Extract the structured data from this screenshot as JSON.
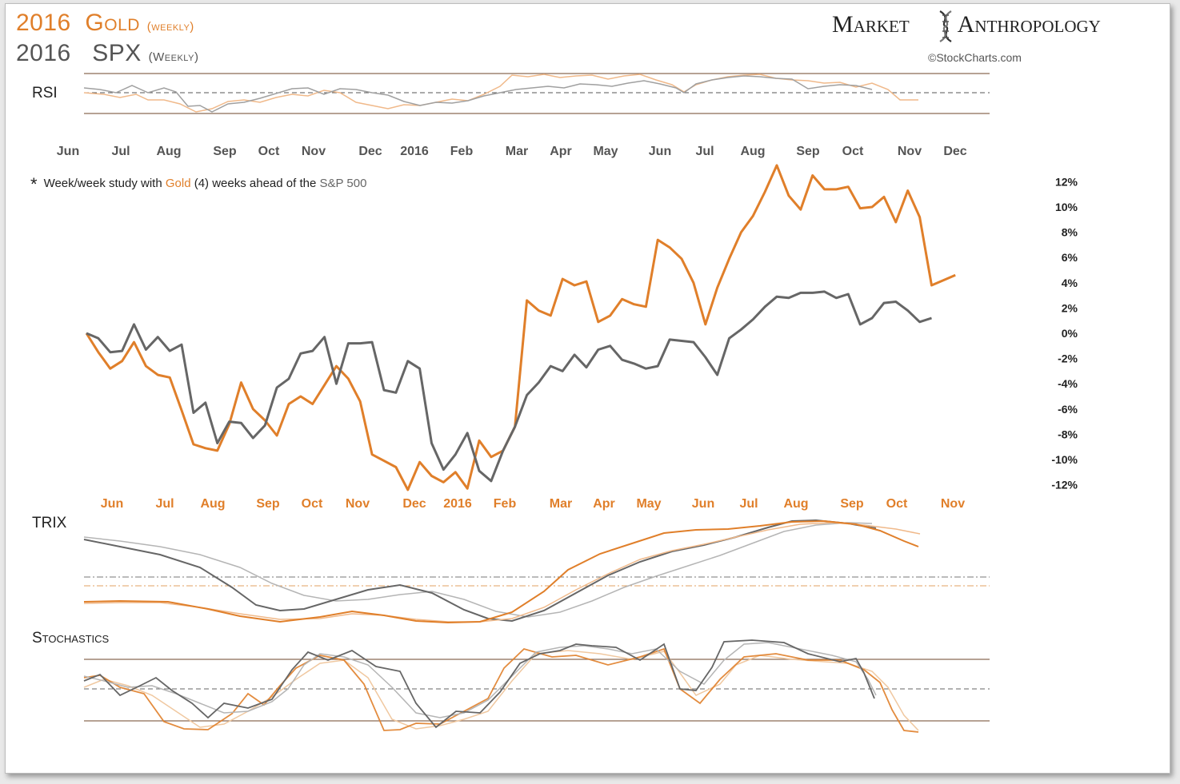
{
  "header": {
    "gold_year": "2016",
    "gold_name": "Gold",
    "gold_sub": "(weekly)",
    "spx_year": "2016",
    "spx_name": "SPX",
    "spx_sub": "(Weekly)",
    "brand_left": "Market",
    "brand_right": "Anthropology",
    "brand_icon": "dna-icon",
    "credit": "©StockCharts.com"
  },
  "note": {
    "star": "*",
    "before": "Week/week study with ",
    "gold": "Gold",
    "middle": " (4) weeks ahead of the ",
    "spx": "S&P 500"
  },
  "colors": {
    "gold": "#e07f2a",
    "spx": "#666666",
    "gold_light": "#f0b98a",
    "spx_light": "#b5b5b5",
    "band": "#8a6a55"
  },
  "labels": {
    "rsi": "RSI",
    "trix": "TRIX",
    "stochastics": "Stochastics"
  },
  "chart_data": {
    "type": "line",
    "gray_months": [
      "Jun",
      "Jul",
      "Aug",
      "Sep",
      "Oct",
      "Nov",
      "Dec",
      "2016",
      "Feb",
      "Mar",
      "Apr",
      "May",
      "Jun",
      "Jul",
      "Aug",
      "Sep",
      "Oct",
      "Nov",
      "Dec"
    ],
    "gold_months": [
      "Jun",
      "Jul",
      "Aug",
      "Sep",
      "Oct",
      "Nov",
      "Dec",
      "2016",
      "Feb",
      "Mar",
      "Apr",
      "May",
      "Jun",
      "Jul",
      "Aug",
      "Sep",
      "Oct",
      "Nov"
    ],
    "y_ticks": [
      "12%",
      "10%",
      "8%",
      "6%",
      "4%",
      "2%",
      "0%",
      "-2%",
      "-4%",
      "-6%",
      "-8%",
      "-10%",
      "-12%"
    ],
    "y_tick_values": [
      12,
      10,
      8,
      6,
      4,
      2,
      0,
      -2,
      -4,
      -6,
      -8,
      -10,
      -12
    ],
    "ylim": [
      -12,
      12
    ],
    "series": [
      {
        "name": "Gold",
        "color": "#e07f2a",
        "values": [
          0,
          -1.5,
          -2.8,
          -2.2,
          -0.7,
          -2.6,
          -3.3,
          -3.5,
          -6.1,
          -8.8,
          -9.1,
          -9.3,
          -7.2,
          -3.9,
          -6.0,
          -6.9,
          -8.1,
          -5.6,
          -5.0,
          -5.6,
          -4.1,
          -2.6,
          -3.6,
          -5.4,
          -9.6,
          -10.1,
          -10.6,
          -12.4,
          -10.2,
          -11.3,
          -11.8,
          -11.0,
          -12.3,
          -8.5,
          -9.8,
          -9.3,
          -7.4,
          2.6,
          1.8,
          1.4,
          4.3,
          3.8,
          4.1,
          0.9,
          1.4,
          2.7,
          2.3,
          2.1,
          7.4,
          6.8,
          5.9,
          4.0,
          0.7,
          3.6,
          5.9,
          8.0,
          9.3,
          11.2,
          13.3,
          10.9,
          9.8,
          12.5,
          11.4,
          11.4,
          11.6,
          9.9,
          10.0,
          10.8,
          8.8,
          11.3,
          9.2,
          3.8,
          4.2,
          4.6
        ]
      },
      {
        "name": "S&P 500",
        "color": "#666666",
        "values": [
          0,
          -0.4,
          -1.5,
          -1.4,
          0.7,
          -1.3,
          -0.3,
          -1.4,
          -0.9,
          -6.3,
          -5.5,
          -8.7,
          -7.0,
          -7.1,
          -8.3,
          -7.3,
          -4.3,
          -3.6,
          -1.6,
          -1.4,
          -0.3,
          -4.0,
          -0.8,
          -0.8,
          -0.7,
          -4.5,
          -4.7,
          -2.2,
          -2.8,
          -8.7,
          -10.8,
          -9.6,
          -7.9,
          -10.9,
          -11.7,
          -9.3,
          -7.4,
          -4.9,
          -3.9,
          -2.6,
          -3.0,
          -1.7,
          -2.7,
          -1.3,
          -1.0,
          -2.1,
          -2.4,
          -2.8,
          -2.6,
          -0.5,
          -0.6,
          -0.7,
          -1.9,
          -3.3,
          -0.4,
          0.3,
          1.1,
          2.1,
          2.9,
          2.8,
          3.2,
          3.2,
          3.3,
          2.8,
          3.1,
          0.7,
          1.2,
          2.4,
          2.5,
          1.8,
          0.9,
          1.2
        ]
      }
    ]
  }
}
